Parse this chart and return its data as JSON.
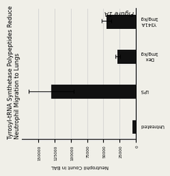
{
  "title_line1": "Tyrosyl-tRNA Synthetase Polypeptides Reduce",
  "title_line2": "Neutrophil Migration to Lungs",
  "figure_label": "Figure 1A",
  "categories": [
    "Untreated",
    "LPS",
    "Dex\n1mg/kg",
    "Y341A\n1mg/kg"
  ],
  "values": [
    5000,
    130000,
    28000,
    45000
  ],
  "errors": [
    0,
    35000,
    4000,
    7000
  ],
  "bar_color": "#111111",
  "ylabel": "Neutrophil Count in BAL",
  "ylim": [
    0,
    175000
  ],
  "yticks": [
    0,
    25000,
    50000,
    75000,
    100000,
    125000,
    150000
  ],
  "ytick_labels": [
    "0",
    "25000",
    "50000",
    "75000",
    "100000",
    "125000",
    "150000"
  ],
  "background_color": "#f0efe8",
  "title_fontsize": 6.2,
  "label_fontsize": 5.0,
  "tick_fontsize": 4.2,
  "figure_label_fontsize": 6.5,
  "bar_width": 0.4
}
